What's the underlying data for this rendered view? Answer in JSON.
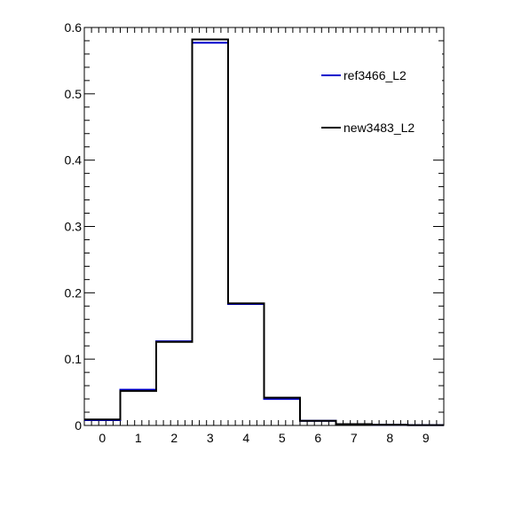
{
  "chart_data": {
    "type": "line",
    "x": [
      0,
      1,
      2,
      3,
      4,
      5,
      6,
      7,
      8,
      9
    ],
    "xlim": [
      -0.5,
      9.5
    ],
    "ylim": [
      0,
      0.6
    ],
    "x_ticks": [
      "0",
      "1",
      "2",
      "3",
      "4",
      "5",
      "6",
      "7",
      "8",
      "9"
    ],
    "y_ticks": [
      "0",
      "0.1",
      "0.2",
      "0.3",
      "0.4",
      "0.5",
      "0.6"
    ],
    "y_tick_values": [
      0,
      0.1,
      0.2,
      0.3,
      0.4,
      0.5,
      0.6
    ],
    "grid": false,
    "legend_position": "top-right",
    "series": [
      {
        "name": "ref3466_L2",
        "color": "#0000cc",
        "values": [
          0.008,
          0.054,
          0.127,
          0.577,
          0.183,
          0.04,
          0.007,
          0.002,
          0.001,
          0.0005
        ]
      },
      {
        "name": "new3483_L2",
        "color": "#000000",
        "values": [
          0.009,
          0.052,
          0.126,
          0.582,
          0.184,
          0.042,
          0.007,
          0.002,
          0.001,
          0.0005
        ]
      }
    ]
  }
}
